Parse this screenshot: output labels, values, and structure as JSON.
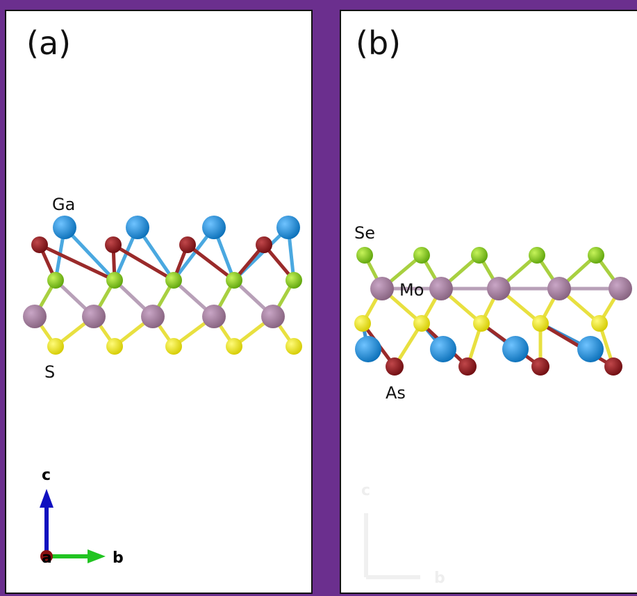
{
  "panel_a": {
    "label": "(a)",
    "atom_labels": {
      "ga": "Ga",
      "s": "S"
    },
    "axes": {
      "c": "c",
      "a": "a",
      "b": "b"
    }
  },
  "panel_b": {
    "label": "(b)",
    "atom_labels": {
      "se": "Se",
      "mo": "Mo",
      "as": "As"
    },
    "axes": {
      "c": "c",
      "b": "b"
    }
  }
}
